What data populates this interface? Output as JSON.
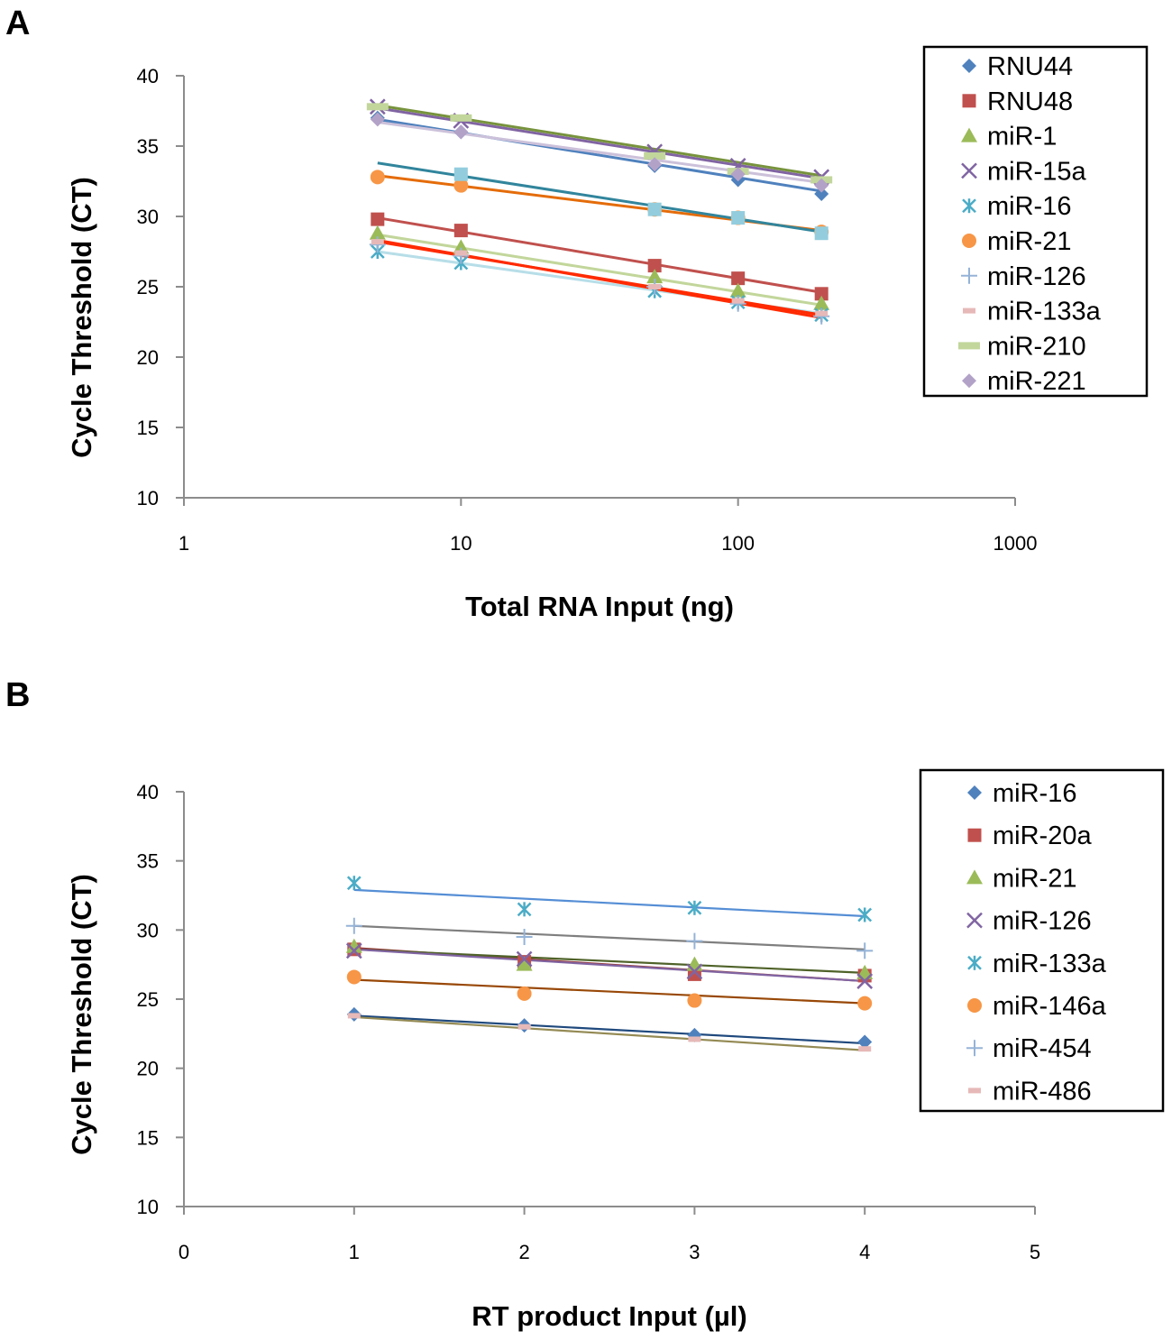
{
  "chart_data": [
    {
      "panel": "A",
      "type": "scatter",
      "xscale": "log",
      "xlim": [
        1,
        1000
      ],
      "ylim": [
        10,
        40
      ],
      "xticks": [
        "1",
        "10",
        "100",
        "1000"
      ],
      "yticks": [
        "10",
        "15",
        "20",
        "25",
        "30",
        "35",
        "40"
      ],
      "xlabel": "Total RNA Input (ng)",
      "ylabel": "Cycle Threshold (CT)",
      "legend_position": "top-right",
      "trendlines": true,
      "x": [
        5,
        10,
        50,
        100,
        200
      ],
      "series": [
        {
          "name": "RNU44",
          "marker": "diamond",
          "color": "#4f81bd",
          "values": [
            37.0,
            36.0,
            33.6,
            32.6,
            31.6
          ],
          "fit": [
            36.9,
            31.8
          ],
          "fit_color": "#4f81bd"
        },
        {
          "name": "RNU48",
          "marker": "square",
          "color": "#c0504d",
          "values": [
            29.8,
            29.0,
            26.5,
            25.6,
            24.5
          ],
          "fit": [
            29.9,
            24.6
          ],
          "fit_color": "#c0504d"
        },
        {
          "name": "miR-1",
          "marker": "triangle",
          "color": "#9bbb59",
          "values": [
            28.8,
            27.8,
            25.7,
            24.7,
            23.8
          ],
          "fit": [
            28.7,
            23.7
          ],
          "fit_color": "#c2d69b"
        },
        {
          "name": "miR-15a",
          "marker": "x",
          "color": "#8064a2",
          "values": [
            37.8,
            36.8,
            34.6,
            33.6,
            32.8
          ],
          "fit": [
            37.7,
            32.7
          ],
          "fit_color": "#8064a2"
        },
        {
          "name": "miR-16",
          "marker": "asterisk",
          "color": "#4bacc6",
          "values": [
            27.5,
            26.7,
            24.7,
            23.9,
            23.0
          ],
          "fit": [
            27.5,
            23.1
          ],
          "fit_color": "#b7dee8"
        },
        {
          "name": "miR-21",
          "marker": "circle",
          "color": "#f79646",
          "values": [
            32.8,
            32.2,
            30.5,
            29.9,
            28.9
          ],
          "fit": [
            32.9,
            29.0
          ],
          "fit_color": "#e46c0a"
        },
        {
          "name": "miR-126",
          "marker": "plus",
          "color": "#95b3d7",
          "values": [
            28.0,
            27.2,
            25.0,
            23.8,
            22.9
          ],
          "fit": [
            28.3,
            22.8
          ],
          "fit_color": "#ff2a00"
        },
        {
          "name": "miR-133a",
          "marker": "dash",
          "color": "#e6b9b8",
          "values": [
            28.2,
            27.4,
            25.0,
            24.0,
            23.1
          ],
          "fit": [
            28.2,
            23.0
          ],
          "fit_color": "#ff2a00"
        },
        {
          "name": "miR-210",
          "marker": "bar",
          "color": "#c2d69b",
          "values": [
            37.8,
            37.0,
            34.3,
            33.2,
            32.6
          ],
          "fit": [
            37.9,
            32.9
          ],
          "fit_color": "#77933c"
        },
        {
          "name": "miR-221",
          "marker": "diamond",
          "color": "#b3a2c7",
          "values": [
            36.9,
            36.0,
            33.7,
            33.0,
            32.2
          ],
          "fit": [
            36.7,
            32.4
          ],
          "fit_color": "#ccc1da"
        }
      ],
      "extra_markers": [
        {
          "marker": "square",
          "color": "#93cddd",
          "points": [
            [
              10,
              33.0
            ],
            [
              50,
              30.5
            ],
            [
              100,
              29.9
            ],
            [
              200,
              28.8
            ]
          ]
        }
      ],
      "extra_lines": [
        {
          "color": "#31859c",
          "from": [
            5,
            33.8
          ],
          "to": [
            200,
            28.9
          ]
        }
      ]
    },
    {
      "panel": "B",
      "type": "scatter",
      "xscale": "linear",
      "xlim": [
        0,
        5
      ],
      "ylim": [
        10,
        40
      ],
      "xticks": [
        "0",
        "1",
        "2",
        "3",
        "4",
        "5"
      ],
      "yticks": [
        "10",
        "15",
        "20",
        "25",
        "30",
        "35",
        "40"
      ],
      "xlabel": "RT product Input (µl)",
      "ylabel": "Cycle Threshold (CT)",
      "legend_position": "top-right",
      "trendlines": true,
      "x": [
        1,
        2,
        3,
        4
      ],
      "series": [
        {
          "name": "miR-16",
          "marker": "diamond",
          "color": "#4f81bd",
          "values": [
            23.9,
            23.1,
            22.4,
            21.9
          ],
          "fit": [
            23.8,
            21.8
          ],
          "fit_color": "#1f497d"
        },
        {
          "name": "miR-20a",
          "marker": "square",
          "color": "#c0504d",
          "values": [
            28.6,
            27.7,
            26.8,
            26.7
          ],
          "fit": [
            28.7,
            26.3
          ],
          "fit_color": "#953735"
        },
        {
          "name": "miR-21",
          "marker": "triangle",
          "color": "#9bbb59",
          "values": [
            28.8,
            27.5,
            27.5,
            26.9
          ],
          "fit": [
            28.6,
            26.9
          ],
          "fit_color": "#4f6228"
        },
        {
          "name": "miR-126",
          "marker": "x",
          "color": "#8064a2",
          "values": [
            28.5,
            27.9,
            27.0,
            26.3
          ],
          "fit": [
            28.6,
            26.3
          ],
          "fit_color": "#8064a2"
        },
        {
          "name": "miR-133a",
          "marker": "asterisk",
          "color": "#4bacc6",
          "values": [
            33.4,
            31.5,
            31.6,
            31.1
          ],
          "fit": [
            32.9,
            31.0
          ],
          "fit_color": "#558ed5"
        },
        {
          "name": "miR-146a",
          "marker": "circle",
          "color": "#f79646",
          "values": [
            26.6,
            25.4,
            24.9,
            24.7
          ],
          "fit": [
            26.4,
            24.7
          ],
          "fit_color": "#984807"
        },
        {
          "name": "miR-454",
          "marker": "plus",
          "color": "#95b3d7",
          "values": [
            30.3,
            29.5,
            29.2,
            28.5
          ],
          "fit": [
            30.3,
            28.6
          ],
          "fit_color": "#7f7f7f"
        },
        {
          "name": "miR-486",
          "marker": "dash",
          "color": "#e6b9b8",
          "values": [
            23.8,
            23.0,
            22.1,
            21.4
          ],
          "fit": [
            23.7,
            21.3
          ],
          "fit_color": "#948a54"
        }
      ]
    }
  ]
}
